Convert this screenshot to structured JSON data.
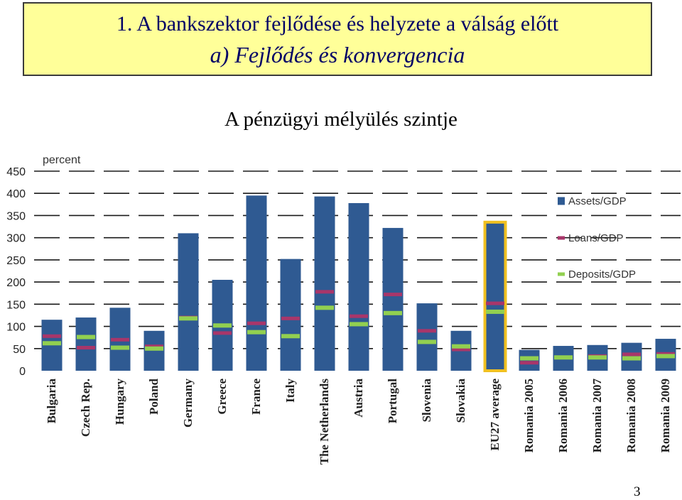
{
  "slide": {
    "title_line1": "1. A bankszektor fejlődése és helyzete a válság előtt",
    "title_line2": "a) Fejlődés és konvergencia",
    "subtitle": "A pénzügyi mélyülés szintje",
    "page_number": "3"
  },
  "colors": {
    "title_bg": "#ffff99",
    "title_text": "#000066",
    "bar": "#2f5a92",
    "loans": "#a8366a",
    "deposits": "#92d050",
    "highlight": "#f0c020"
  },
  "chart_data": {
    "type": "bar",
    "unit_label": "percent",
    "ylim": [
      0,
      450
    ],
    "yticks": [
      0,
      50,
      100,
      150,
      200,
      250,
      300,
      350,
      400,
      450
    ],
    "grid": true,
    "legend_position": "right",
    "highlighted_category": "EU27 average",
    "categories": [
      "Bulgaria",
      "Czech Rep.",
      "Hungary",
      "Poland",
      "Germany",
      "Greece",
      "France",
      "Italy",
      "The Netherlands",
      "Austria",
      "Portugal",
      "Slovenia",
      "Slovakia",
      "EU27 average",
      "Romania 2005",
      "Romania 2006",
      "Romania 2007",
      "Romania 2008",
      "Romania 2009"
    ],
    "series": [
      {
        "name": "Assets/GDP",
        "mark": "bar",
        "values": [
          115,
          120,
          142,
          90,
          310,
          205,
          395,
          252,
          393,
          378,
          322,
          152,
          90,
          335,
          47,
          56,
          58,
          63,
          72
        ]
      },
      {
        "name": "Loans/GDP",
        "mark": "dash",
        "values": [
          78,
          52,
          70,
          55,
          120,
          85,
          107,
          118,
          178,
          123,
          172,
          90,
          48,
          152,
          18,
          30,
          33,
          37,
          38
        ]
      },
      {
        "name": "Deposits/GDP",
        "mark": "dash",
        "values": [
          62,
          76,
          52,
          50,
          118,
          102,
          87,
          78,
          142,
          105,
          130,
          65,
          55,
          133,
          28,
          30,
          30,
          28,
          33
        ]
      }
    ]
  }
}
